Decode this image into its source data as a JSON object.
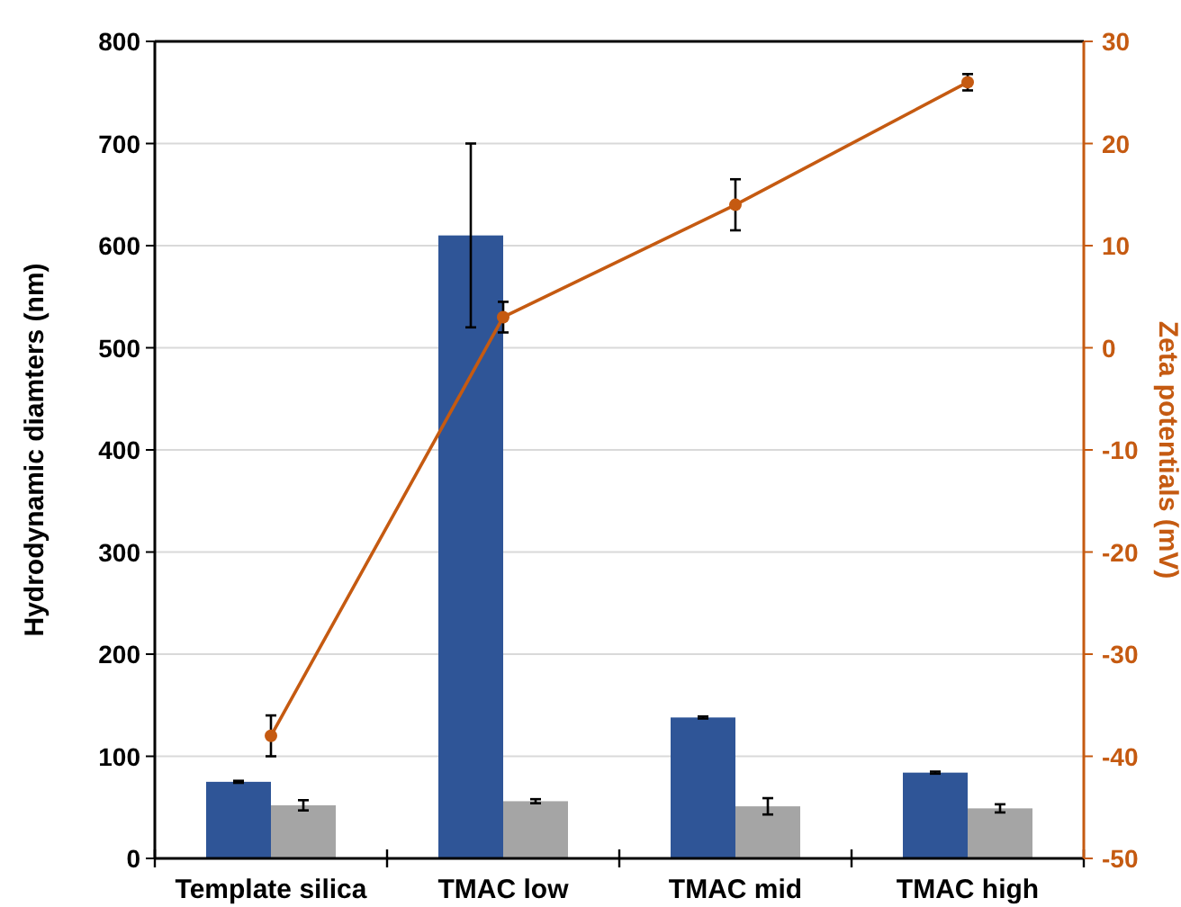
{
  "chart_data": {
    "type": "bar",
    "categories": [
      "Template silica",
      "TMAC low",
      "TMAC mid",
      "TMAC high"
    ],
    "ylabel": "Hydrodynamic diamters (nm)",
    "y2label": "Zeta potentials (mV)",
    "ylim": [
      0,
      800
    ],
    "yticks": [
      0,
      100,
      200,
      300,
      400,
      500,
      600,
      700,
      800
    ],
    "y2lim": [
      -50,
      30
    ],
    "y2ticks": [
      -50,
      -40,
      -30,
      -20,
      -10,
      0,
      10,
      20,
      30
    ],
    "grid": "y",
    "series": [
      {
        "color": "#2f5597",
        "values": [
          75,
          610,
          138,
          84
        ],
        "errors": [
          1,
          90,
          1,
          1
        ]
      },
      {
        "color": "#a5a5a5",
        "values": [
          52,
          56,
          51,
          49
        ],
        "errors": [
          5,
          2,
          8,
          4
        ]
      },
      {
        "type": "line",
        "axis": "y2",
        "color": "#c55a11",
        "marker": "circle",
        "line_style": "solid",
        "values": [
          -38,
          3,
          14,
          26
        ],
        "errors": [
          2,
          1.5,
          2.5,
          0.8
        ]
      }
    ]
  }
}
